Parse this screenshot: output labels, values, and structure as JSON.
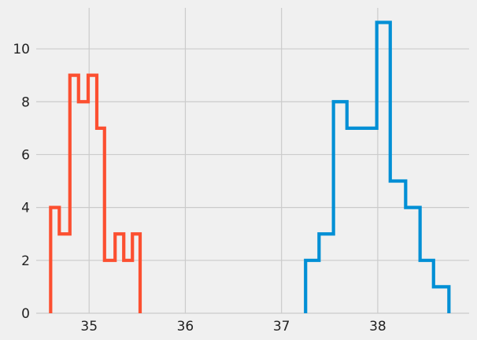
{
  "chart_data": {
    "type": "histogram-step",
    "title": "",
    "xlabel": "",
    "ylabel": "",
    "xlim": [
      34.45,
      38.95
    ],
    "ylim": [
      0,
      11.55
    ],
    "grid": true,
    "legend": "none",
    "x_ticks": [
      35,
      36,
      37,
      38
    ],
    "y_ticks": [
      0,
      2,
      4,
      6,
      8,
      10
    ],
    "series": [
      {
        "color": "#fc4f30",
        "bin_edges": [
          34.6,
          34.69,
          34.8,
          34.89,
          34.99,
          35.08,
          35.16,
          35.27,
          35.36,
          35.45,
          35.53
        ],
        "counts": [
          4,
          3,
          9,
          8,
          9,
          7,
          2,
          3,
          2,
          3
        ]
      },
      {
        "color": "#008fd5",
        "bin_edges": [
          37.25,
          37.39,
          37.54,
          37.68,
          37.83,
          37.99,
          38.13,
          38.29,
          38.44,
          38.58,
          38.74
        ],
        "counts": [
          2,
          3,
          8,
          7,
          7,
          11,
          5,
          4,
          2,
          1
        ]
      }
    ]
  }
}
